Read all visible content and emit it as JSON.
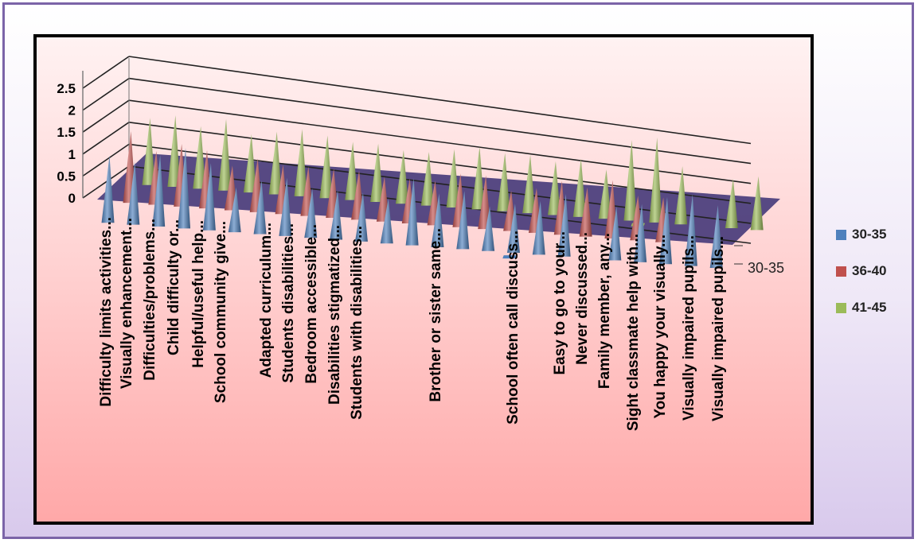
{
  "chart_data": {
    "type": "bar",
    "style": "3d-cone",
    "title": "",
    "xlabel": "",
    "ylabel": "",
    "ylim": [
      0,
      2.5
    ],
    "yticks": [
      "0",
      "0.5",
      "1",
      "1.5",
      "2",
      "2.5"
    ],
    "depth_axis_label": "30-35",
    "categories": [
      "Difficulty limits activities...",
      "Visually enhancement...",
      "Difficulties/problems...",
      "Child difficulty or...",
      "Helpful/useful help...",
      "School community give...",
      "",
      "Adapted curriculum...",
      "Students disabilities...",
      "Bedroom accessible...",
      "Disabilities stigmatized...",
      "Students with disabilities...",
      "",
      "",
      "Brother or sister same...",
      "",
      "",
      "School often call discuss...",
      "Easy to go to your...",
      "Never discussed...",
      "Family member, any...",
      "Sight classmate help with...",
      "You happy your visually...",
      "Visually impaired pupils...",
      "Visually impaired pupils..."
    ],
    "series": [
      {
        "name": "30-35",
        "color": "#4f81bd",
        "values": [
          1.5,
          1.4,
          1.6,
          1.8,
          1.5,
          1.0,
          1.2,
          1.3,
          1.1,
          1.1,
          1.1,
          1.0,
          1.5,
          1.2,
          1.3,
          1.0,
          1.1,
          1.2,
          1.4,
          0.05,
          1.2,
          1.3,
          1.5,
          1.6,
          1.4
        ]
      },
      {
        "name": "36-40",
        "color": "#c0504d",
        "values": [
          1.6,
          1.2,
          1.4,
          1.3,
          1.0,
          1.2,
          1.1,
          1.1,
          1.1,
          1.1,
          1.0,
          1.0,
          1.0,
          1.2,
          1.2,
          0.9,
          1.0,
          1.2,
          1.1,
          1.3,
          1.0,
          1.0,
          0.0,
          0.0,
          0.0
        ]
      },
      {
        "name": "41-45",
        "color": "#9bbb59",
        "values": [
          1.5,
          1.6,
          1.4,
          1.6,
          1.3,
          1.4,
          1.5,
          1.4,
          1.3,
          1.3,
          1.2,
          1.2,
          1.3,
          1.4,
          1.3,
          1.3,
          1.2,
          1.3,
          1.1,
          1.8,
          1.9,
          1.3,
          0.02,
          1.1,
          1.2
        ]
      }
    ],
    "grid": true,
    "legend_position": "right"
  }
}
